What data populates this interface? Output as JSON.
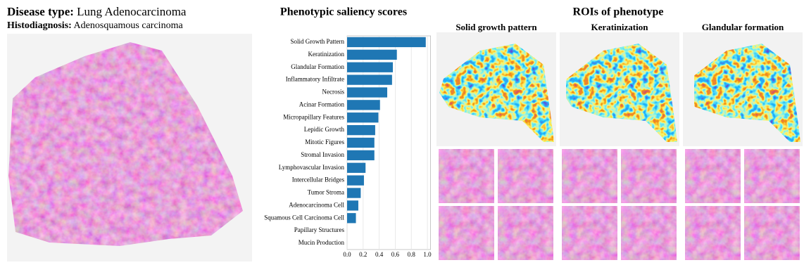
{
  "header": {
    "disease_label": "Disease type:",
    "disease_value": "Lung Adenocarcinoma",
    "histo_label": "Histodiagnosis:",
    "histo_value": "Adenosquamous carcinoma"
  },
  "chart_data": {
    "type": "barh",
    "title": "Phenotypic saliency scores",
    "categories": [
      "Solid Growth Pattern",
      "Keratinization",
      "Glandular Formation",
      "Inflammatory Infiltrate",
      "Necrosis",
      "Acinar Formation",
      "Micropapillary Features",
      "Lepidic Growth",
      "Mitotic Figures",
      "Stromal Invasion",
      "Lymphovascular Invasion",
      "Intercellular Bridges",
      "Tumor Stroma",
      "Adenocarcinoma Cell",
      "Squamous Cell Carcinoma Cell",
      "Papillary Structures",
      "Mucin Production"
    ],
    "values": [
      0.98,
      0.62,
      0.57,
      0.56,
      0.5,
      0.41,
      0.39,
      0.35,
      0.34,
      0.34,
      0.23,
      0.21,
      0.17,
      0.14,
      0.11,
      0,
      0
    ],
    "color": "#1f77b4",
    "xlim": [
      0,
      1.04
    ],
    "xticks": [
      {
        "value": 0,
        "label": "0.0"
      },
      0.2,
      0.4,
      0.6,
      0.8,
      {
        "value": 1,
        "label": "1.0"
      }
    ],
    "grid": true
  },
  "rois": {
    "title": "ROIs of phenotype",
    "columns": [
      "Solid growth pattern",
      "Keratinization",
      "Glandular formation"
    ]
  }
}
